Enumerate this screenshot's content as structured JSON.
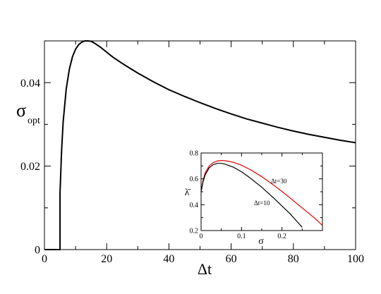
{
  "chart_data": [
    {
      "type": "line",
      "xlabel": "Δt",
      "ylabel": "σ",
      "ylabel_sub": "opt",
      "xlim": [
        0,
        100
      ],
      "ylim": [
        0,
        0.05
      ],
      "x_ticks": [
        0,
        20,
        40,
        60,
        80,
        100
      ],
      "x_tick_labels": [
        "0",
        "20",
        "40",
        "60",
        "80",
        "100"
      ],
      "y_ticks": [
        0,
        0.02,
        0.04
      ],
      "y_tick_labels": [
        "0",
        "0.02",
        "0.04"
      ],
      "grid": false,
      "series": [
        {
          "color": "#000000",
          "x": [
            0,
            5.0,
            5.0,
            5.5,
            6,
            7,
            8,
            9,
            10,
            11,
            12,
            13,
            14,
            15,
            16,
            18,
            20,
            22,
            25,
            28,
            30,
            35,
            40,
            45,
            50,
            55,
            60,
            65,
            70,
            75,
            80,
            85,
            90,
            95,
            100
          ],
          "y": [
            0,
            0,
            0.0135,
            0.0235,
            0.0305,
            0.0385,
            0.0432,
            0.0462,
            0.048,
            0.0491,
            0.0497,
            0.05,
            0.05,
            0.0499,
            0.0495,
            0.0485,
            0.0473,
            0.0461,
            0.0446,
            0.0432,
            0.0423,
            0.0402,
            0.0383,
            0.0367,
            0.0352,
            0.0338,
            0.0325,
            0.0313,
            0.0303,
            0.0293,
            0.0284,
            0.0276,
            0.0269,
            0.0262,
            0.0256
          ]
        }
      ]
    },
    {
      "type": "line",
      "inset": true,
      "xlabel": "σ",
      "ylabel": "λ̄",
      "xlim": [
        0,
        0.3
      ],
      "ylim": [
        0.2,
        0.8
      ],
      "x_ticks": [
        0,
        0.1,
        0.2
      ],
      "x_tick_labels": [
        "0",
        "0.1",
        "0.2"
      ],
      "y_ticks": [
        0.2,
        0.4,
        0.6,
        0.8
      ],
      "y_tick_labels": [
        "0.2",
        "0.4",
        "0.6",
        "0.8"
      ],
      "grid": false,
      "series": [
        {
          "name": "Δt=30",
          "color": "#dd0000",
          "x": [
            0,
            0.005,
            0.01,
            0.02,
            0.03,
            0.04,
            0.05,
            0.06,
            0.08,
            0.1,
            0.12,
            0.15,
            0.18,
            0.2,
            0.22,
            0.25,
            0.28,
            0.3
          ],
          "y": [
            0.5,
            0.59,
            0.645,
            0.7,
            0.726,
            0.738,
            0.742,
            0.74,
            0.728,
            0.705,
            0.674,
            0.617,
            0.55,
            0.502,
            0.452,
            0.375,
            0.298,
            0.24
          ]
        },
        {
          "name": "Δt=10",
          "color": "#000000",
          "x": [
            0,
            0.005,
            0.01,
            0.02,
            0.03,
            0.04,
            0.05,
            0.06,
            0.08,
            0.1,
            0.12,
            0.15,
            0.18,
            0.2,
            0.22,
            0.24,
            0.25
          ],
          "y": [
            0.5,
            0.58,
            0.63,
            0.685,
            0.71,
            0.72,
            0.72,
            0.713,
            0.69,
            0.655,
            0.61,
            0.535,
            0.45,
            0.39,
            0.33,
            0.26,
            0.225
          ]
        }
      ]
    }
  ]
}
